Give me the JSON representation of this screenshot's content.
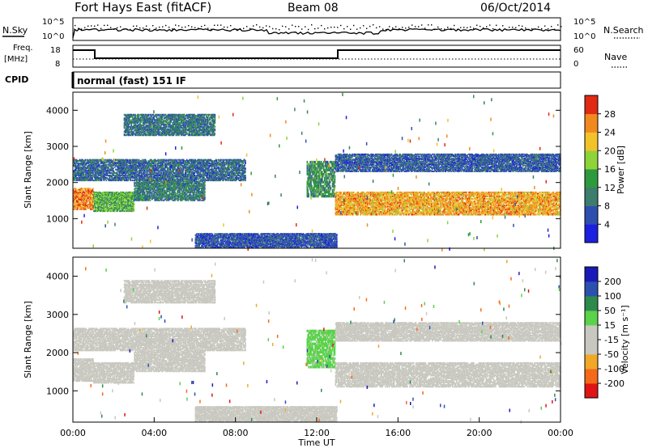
{
  "header": {
    "station": "Fort Hays East (fitACF)",
    "beam": "Beam 08",
    "date": "06/Oct/2014"
  },
  "noise_panel": {
    "left_label": "N.Sky",
    "right_label": "N.Search",
    "left_ticks": [
      "10^5",
      "10^0"
    ],
    "right_ticks": [
      "10^5",
      "10^0"
    ]
  },
  "freq_panel": {
    "left_label_1": "Freq.",
    "left_label_2": "[MHz]",
    "right_label": "Nave",
    "left_ticks": [
      "18",
      "8"
    ],
    "right_ticks": [
      "60",
      "0"
    ]
  },
  "cpid": {
    "label": "CPID",
    "value": "normal (fast) 151 IF"
  },
  "chart_data": [
    {
      "type": "heatmap",
      "ylabel": "Slant Range [km]",
      "yticks": [
        "1000",
        "2000",
        "3000",
        "4000"
      ],
      "ylim": [
        180,
        4500
      ],
      "xlim": [
        0,
        24
      ],
      "colorbar": {
        "label": "Power [dB]",
        "ticks": [
          "4",
          "8",
          "12",
          "16",
          "20",
          "24",
          "28"
        ],
        "range": [
          0,
          32
        ],
        "colors": [
          "#1c20e0",
          "#2f4fae",
          "#3d7d6e",
          "#2e9a3e",
          "#8fd33a",
          "#f2c22a",
          "#f08a20",
          "#e02a14"
        ]
      },
      "bands": [
        {
          "t0": 0.0,
          "t1": 1.0,
          "r0": 1250,
          "r1": 1850,
          "level": 26
        },
        {
          "t0": 1.0,
          "t1": 3.0,
          "r0": 1200,
          "r1": 1750,
          "level": 15
        },
        {
          "t0": 3.0,
          "t1": 6.5,
          "r0": 1500,
          "r1": 2050,
          "level": 10
        },
        {
          "t0": 0.0,
          "t1": 8.5,
          "r0": 2050,
          "r1": 2650,
          "level": 8
        },
        {
          "t0": 2.5,
          "t1": 7.0,
          "r0": 3300,
          "r1": 3900,
          "level": 9
        },
        {
          "t0": 11.5,
          "t1": 12.9,
          "r0": 1600,
          "r1": 2600,
          "level": 12
        },
        {
          "t0": 12.9,
          "t1": 24.0,
          "r0": 1100,
          "r1": 1750,
          "level": 24
        },
        {
          "t0": 12.9,
          "t1": 24.0,
          "r0": 2300,
          "r1": 2800,
          "level": 7
        },
        {
          "t0": 6.0,
          "t1": 13.0,
          "r0": 200,
          "r1": 600,
          "level": 6
        }
      ]
    },
    {
      "type": "heatmap",
      "ylabel": "Slant Range [km]",
      "yticks": [
        "1000",
        "2000",
        "3000",
        "4000"
      ],
      "ylim": [
        180,
        4500
      ],
      "xlim": [
        0,
        24
      ],
      "xlabel": "Time UT",
      "xticks": [
        "00:00",
        "04:00",
        "08:00",
        "12:00",
        "16:00",
        "20:00",
        "00:00"
      ],
      "colorbar": {
        "label": "Velocity [m s⁻¹]",
        "ticks": [
          "200",
          "100",
          "50",
          "15",
          "-15",
          "-50",
          "-100",
          "-200"
        ],
        "range": [
          -250,
          250
        ],
        "colors": [
          "#e01414",
          "#f26a1a",
          "#f0a826",
          "#c8c8c0",
          "#c8c8c0",
          "#5ad24a",
          "#2e8a4c",
          "#2c50b0",
          "#1a1ab8"
        ]
      },
      "bands": [
        {
          "t0": 0.0,
          "t1": 1.0,
          "r0": 1250,
          "r1": 1850,
          "level": 0
        },
        {
          "t0": 1.0,
          "t1": 3.0,
          "r0": 1200,
          "r1": 1750,
          "level": 0
        },
        {
          "t0": 3.0,
          "t1": 6.5,
          "r0": 1500,
          "r1": 2050,
          "level": 0
        },
        {
          "t0": 0.0,
          "t1": 8.5,
          "r0": 2050,
          "r1": 2650,
          "level": 0
        },
        {
          "t0": 2.5,
          "t1": 7.0,
          "r0": 3300,
          "r1": 3900,
          "level": -60
        },
        {
          "t0": 11.5,
          "t1": 12.9,
          "r0": 1600,
          "r1": 2600,
          "level": 40
        },
        {
          "t0": 12.9,
          "t1": 24.0,
          "r0": 1100,
          "r1": 1750,
          "level": 0
        },
        {
          "t0": 12.9,
          "t1": 24.0,
          "r0": 2300,
          "r1": 2800,
          "level": 0
        },
        {
          "t0": 6.0,
          "t1": 13.0,
          "r0": 200,
          "r1": 600,
          "level": -30
        }
      ]
    }
  ]
}
